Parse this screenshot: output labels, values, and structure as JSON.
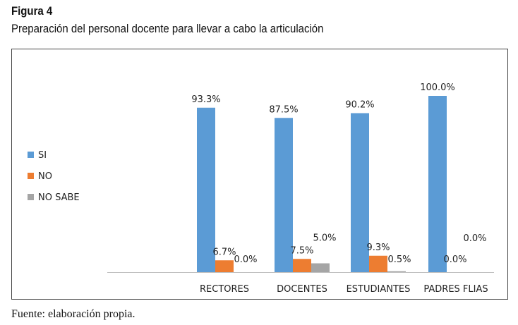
{
  "figure": {
    "label": "Figura 4",
    "title": "Preparación del personal docente para llevar a cabo la articulación",
    "source": "Fuente: elaboración propia."
  },
  "chart_data": {
    "type": "bar",
    "categories": [
      "RECTORES",
      "DOCENTES",
      "ESTUDIANTES",
      "PADRES FLIAS"
    ],
    "series": [
      {
        "name": "SI",
        "color": "#5b9bd5",
        "values": [
          93.3,
          87.5,
          90.2,
          100.0
        ],
        "labels": [
          "93.3%",
          "87.5%",
          "90.2%",
          "100.0%"
        ]
      },
      {
        "name": "NO",
        "color": "#ed7d31",
        "values": [
          6.7,
          7.5,
          9.3,
          0.0
        ],
        "labels": [
          "6.7%",
          "7.5%",
          "9.3%",
          "0.0%"
        ]
      },
      {
        "name": "NO SABE",
        "color": "#a5a5a5",
        "values": [
          0.0,
          5.0,
          0.5,
          0.0
        ],
        "labels": [
          "0.0%",
          "5.0%",
          "0.5%",
          "0.0%"
        ]
      }
    ],
    "ylim": [
      0,
      100
    ],
    "legend_position": "left",
    "grid": false
  }
}
